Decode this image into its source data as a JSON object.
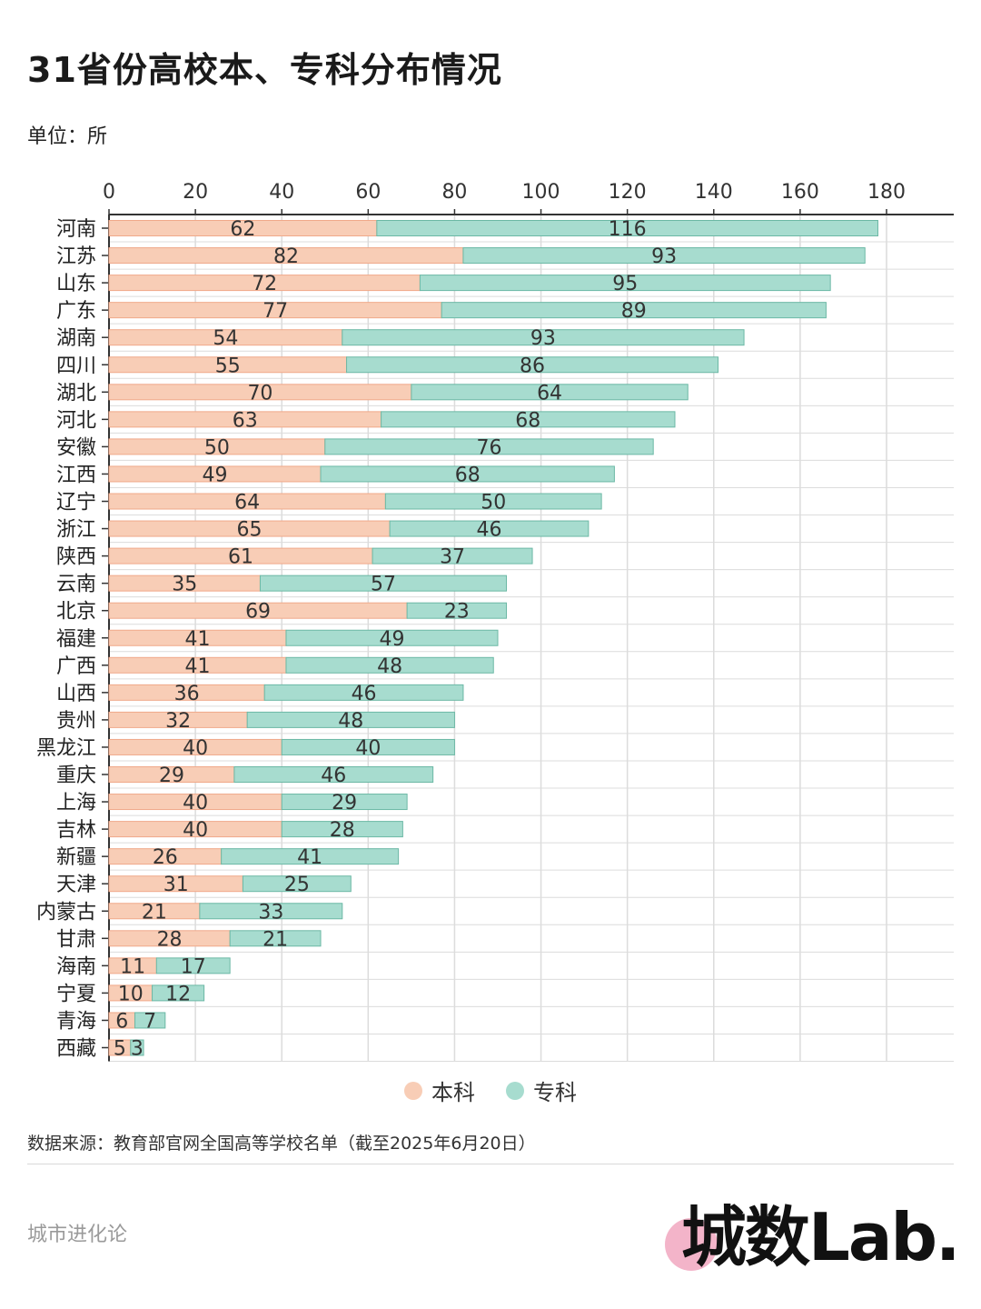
{
  "title": "31省份高校本、专科分布情况",
  "unit_label": "单位：所",
  "source": "数据来源：教育部官网全国高等学校名单（截至2025年6月20日）",
  "brand": "城市进化论",
  "logo_text": "城数Lab.",
  "colors": {
    "undergrad": "#f8cdb6",
    "undergrad_stroke": "#f0a98a",
    "junior": "#a7dccf",
    "junior_stroke": "#6cb8a5",
    "grid": "#dcdcdc",
    "axis": "#333333",
    "logo_dot": "#f1a7c0"
  },
  "legend": [
    {
      "name": "本科",
      "color": "#f8cdb6"
    },
    {
      "name": "专科",
      "color": "#a7dccf"
    }
  ],
  "chart_data": {
    "type": "bar",
    "orientation": "horizontal",
    "stacked": true,
    "categories": [
      "河南",
      "江苏",
      "山东",
      "广东",
      "湖南",
      "四川",
      "湖北",
      "河北",
      "安徽",
      "江西",
      "辽宁",
      "浙江",
      "陕西",
      "云南",
      "北京",
      "福建",
      "广西",
      "山西",
      "贵州",
      "黑龙江",
      "重庆",
      "上海",
      "吉林",
      "新疆",
      "天津",
      "内蒙古",
      "甘肃",
      "海南",
      "宁夏",
      "青海",
      "西藏"
    ],
    "series": [
      {
        "name": "本科",
        "values": [
          62,
          82,
          72,
          77,
          54,
          55,
          70,
          63,
          50,
          49,
          64,
          65,
          61,
          35,
          69,
          41,
          41,
          36,
          32,
          40,
          29,
          40,
          40,
          26,
          31,
          21,
          28,
          11,
          10,
          6,
          5
        ]
      },
      {
        "name": "专科",
        "values": [
          116,
          93,
          95,
          89,
          93,
          86,
          64,
          68,
          76,
          68,
          50,
          46,
          37,
          57,
          23,
          49,
          48,
          46,
          48,
          40,
          46,
          29,
          28,
          41,
          25,
          33,
          21,
          17,
          12,
          7,
          3
        ]
      }
    ],
    "xlim": [
      0,
      180
    ],
    "xticks": [
      0,
      20,
      40,
      60,
      80,
      100,
      120,
      140,
      160,
      180
    ],
    "grid": true,
    "legend_position": "bottom"
  }
}
